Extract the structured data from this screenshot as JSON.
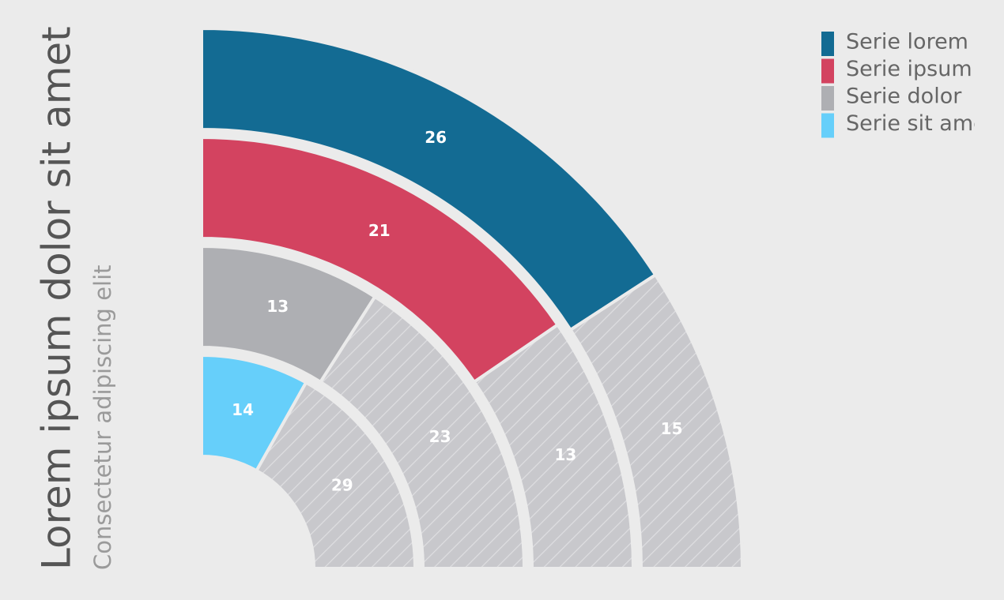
{
  "chart_data": {
    "type": "radial-bar",
    "title": "Lorem ipsum dolor sit amet",
    "subtitle": "Consectetur adipiscing elit",
    "series": [
      {
        "name": "Serie lorem",
        "color": "#136b93",
        "values": [
          26,
          15
        ]
      },
      {
        "name": "Serie ipsum",
        "color": "#d34360",
        "values": [
          21,
          13
        ]
      },
      {
        "name": "Serie dolor",
        "color": "#aeafb3",
        "values": [
          13,
          23
        ]
      },
      {
        "name": "Serie sit amet",
        "color": "#66cffa",
        "values": [
          14,
          29
        ]
      }
    ],
    "rest_color": "#c8c8cc",
    "legend": "top-right"
  }
}
